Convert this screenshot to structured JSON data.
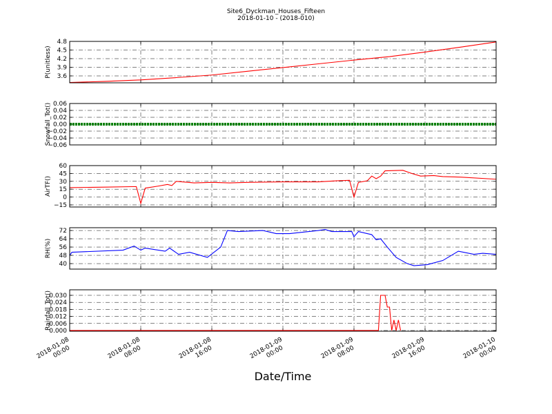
{
  "title": "Site6_Dyckman_Houses_Fifteen",
  "subtitle": "2018-01-10 - (2018-010)",
  "xaxis": {
    "label": "Date/Time",
    "xlim": [
      "2018-01-08 00:00",
      "2018-01-10 00:00"
    ],
    "xticks": [
      "2018-01-08 00:00",
      "2018-01-08 08:00",
      "2018-01-08 16:00",
      "2018-01-09 00:00",
      "2018-01-09 08:00",
      "2018-01-09 16:00",
      "2018-01-10 00:00"
    ],
    "grid": true
  },
  "chart_data": [
    {
      "type": "line",
      "ylabel": "P(unitless)",
      "color": "#ff0000",
      "ylim": [
        3.36,
        4.8
      ],
      "yticks": [
        3.6,
        3.9,
        4.2,
        4.5,
        4.8
      ],
      "x": [
        "2018-01-08 00:00",
        "2018-01-08 04:00",
        "2018-01-08 08:00",
        "2018-01-08 12:00",
        "2018-01-08 16:00",
        "2018-01-08 20:00",
        "2018-01-09 00:00",
        "2018-01-09 04:00",
        "2018-01-09 08:00",
        "2018-01-09 12:00",
        "2018-01-09 16:00",
        "2018-01-09 20:00",
        "2018-01-10 00:00"
      ],
      "values": [
        3.37,
        3.41,
        3.46,
        3.54,
        3.63,
        3.76,
        3.89,
        4.02,
        4.15,
        4.27,
        4.43,
        4.6,
        4.78
      ]
    },
    {
      "type": "line",
      "ylabel": "Snowfall_Tot()",
      "color": "#008000",
      "ylim": [
        -0.06,
        0.06
      ],
      "yticks": [
        {
          "value": -0.06,
          "label": "−0.06"
        },
        {
          "value": -0.04,
          "label": "−0.04"
        },
        {
          "value": -0.02,
          "label": "−0.02"
        },
        {
          "value": 0,
          "label": "0.00"
        },
        0.02,
        0.04,
        0.06
      ],
      "x": [
        "2018-01-08 00:00",
        "2018-01-08 04:00",
        "2018-01-08 08:00",
        "2018-01-08 12:00",
        "2018-01-08 16:00",
        "2018-01-08 20:00",
        "2018-01-09 00:00",
        "2018-01-09 04:00",
        "2018-01-09 08:00",
        "2018-01-09 12:00",
        "2018-01-09 16:00",
        "2018-01-09 20:00",
        "2018-01-10 00:00"
      ],
      "values": [
        0,
        0,
        0,
        0,
        0,
        0,
        0,
        0,
        0,
        0,
        0,
        0,
        0
      ]
    },
    {
      "type": "line",
      "ylabel": "AirTF()",
      "color": "#ff0000",
      "ylim": [
        -19,
        60
      ],
      "yticks": [
        {
          "value": -15,
          "label": "−15"
        },
        0,
        15,
        30,
        45,
        60
      ],
      "x": [
        "2018-01-08 00:00",
        "2018-01-08 04:00",
        "2018-01-08 07:30",
        "2018-01-08 08:00",
        "2018-01-08 08:30",
        "2018-01-08 10:00",
        "2018-01-08 11:00",
        "2018-01-08 11:30",
        "2018-01-08 12:00",
        "2018-01-08 14:00",
        "2018-01-08 16:00",
        "2018-01-08 18:00",
        "2018-01-08 20:00",
        "2018-01-09 00:00",
        "2018-01-09 04:00",
        "2018-01-09 06:00",
        "2018-01-09 07:30",
        "2018-01-09 08:00",
        "2018-01-09 08:30",
        "2018-01-09 09:30",
        "2018-01-09 10:00",
        "2018-01-09 10:30",
        "2018-01-09 11:00",
        "2018-01-09 11:30",
        "2018-01-09 13:30",
        "2018-01-09 14:30",
        "2018-01-09 15:30",
        "2018-01-09 17:00",
        "2018-01-09 18:00",
        "2018-01-09 20:00",
        "2018-01-10 00:00"
      ],
      "values": [
        18,
        19,
        20,
        -12,
        17,
        21,
        24,
        22,
        30,
        27,
        28,
        27,
        28,
        29,
        29,
        31,
        32,
        0,
        28,
        31,
        40,
        35,
        40,
        50,
        51,
        45,
        40,
        41,
        39,
        38,
        34
      ]
    },
    {
      "type": "line",
      "ylabel": "RH(%)",
      "color": "#0000ff",
      "ylim": [
        34.7,
        74.7
      ],
      "yticks": [
        40,
        48,
        56,
        64,
        72
      ],
      "x": [
        "2018-01-08 00:00",
        "2018-01-08 00:15",
        "2018-01-08 06:00",
        "2018-01-08 07:15",
        "2018-01-08 08:00",
        "2018-01-08 08:30",
        "2018-01-08 10:45",
        "2018-01-08 11:15",
        "2018-01-08 12:15",
        "2018-01-08 13:30",
        "2018-01-08 15:30",
        "2018-01-08 17:00",
        "2018-01-08 17:45",
        "2018-01-08 19:00",
        "2018-01-08 21:45",
        "2018-01-08 23:15",
        "2018-01-09 00:45",
        "2018-01-09 04:00",
        "2018-01-09 04:45",
        "2018-01-09 05:30",
        "2018-01-09 07:45",
        "2018-01-09 08:00",
        "2018-01-09 08:30",
        "2018-01-09 10:00",
        "2018-01-09 10:30",
        "2018-01-09 11:00",
        "2018-01-09 11:45",
        "2018-01-09 12:45",
        "2018-01-09 14:00",
        "2018-01-09 14:45",
        "2018-01-09 16:15",
        "2018-01-09 18:00",
        "2018-01-09 19:45",
        "2018-01-09 21:30",
        "2018-01-09 22:30",
        "2018-01-10 00:00"
      ],
      "values": [
        48,
        51,
        53,
        57,
        53,
        55,
        52,
        55,
        49,
        51,
        46,
        56,
        72,
        71,
        72,
        69,
        69,
        72,
        73,
        71,
        71,
        66,
        71,
        68,
        63,
        64,
        56,
        46,
        40,
        38,
        39,
        43,
        52,
        49,
        50,
        49
      ]
    },
    {
      "type": "line",
      "ylabel": "Rainfall_Tot()",
      "color": "#ff0000",
      "ylim": [
        -0.0006,
        0.0347
      ],
      "yticks": [
        {
          "value": 0,
          "label": "0.000"
        },
        {
          "value": 0.006,
          "label": "0.006"
        },
        {
          "value": 0.012,
          "label": "0.012"
        },
        {
          "value": 0.018,
          "label": "0.018"
        },
        {
          "value": 0.024,
          "label": "0.024"
        },
        {
          "value": 0.03,
          "label": "0.030"
        }
      ],
      "x": [
        "2018-01-08 00:00",
        "2018-01-09 10:45",
        "2018-01-09 11:00",
        "2018-01-09 11:30",
        "2018-01-09 11:45",
        "2018-01-09 12:00",
        "2018-01-09 12:15",
        "2018-01-09 12:30",
        "2018-01-09 12:45",
        "2018-01-09 13:00",
        "2018-01-09 13:15",
        "2018-01-10 00:00"
      ],
      "values": [
        0,
        0,
        0.03,
        0.03,
        0.02,
        0.02,
        0,
        0.009,
        0,
        0.009,
        0,
        null
      ]
    }
  ]
}
